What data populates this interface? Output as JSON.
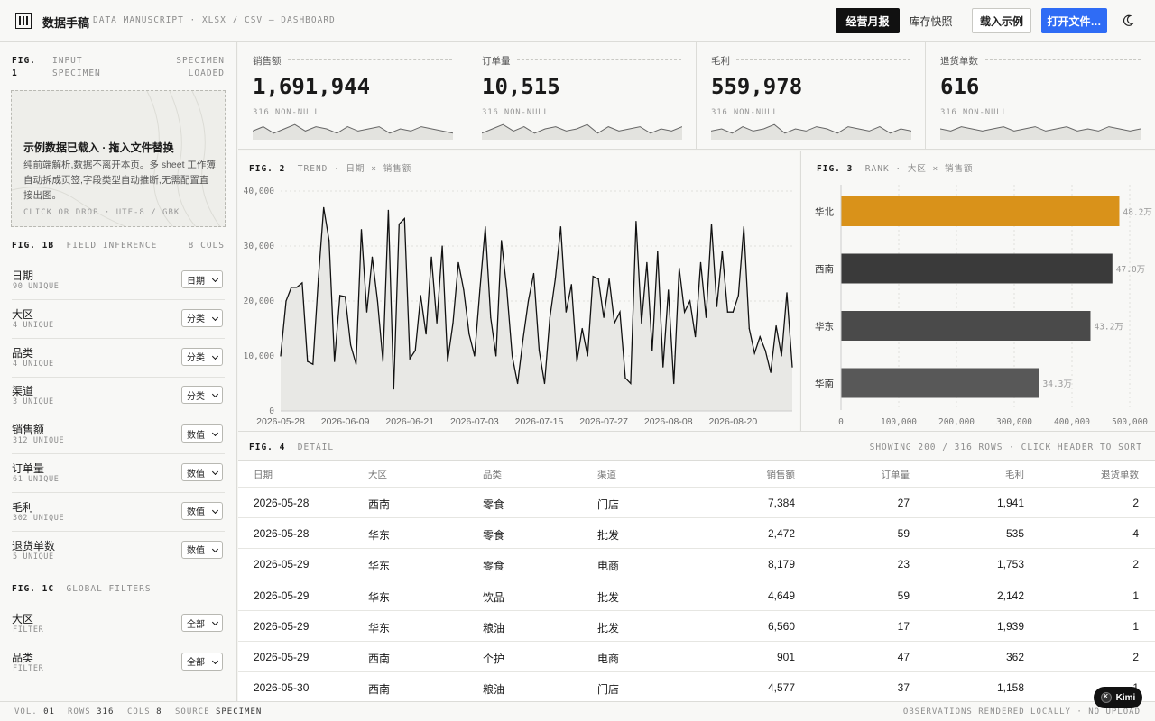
{
  "header": {
    "title": "数据手稿",
    "subtitle": "DATA MANUSCRIPT · XLSX / CSV — DASHBOARD",
    "btn_monthly": "经营月报",
    "btn_snapshot": "库存快照",
    "btn_load": "载入示例",
    "btn_open": "打开文件…"
  },
  "sidebar": {
    "fig1_a": "FIG.",
    "fig1_b": "1",
    "fig1_c": "INPUT",
    "fig1_d": "SPECIMEN",
    "fig1_e": "SPECIMEN",
    "fig1_f": "LOADED",
    "drop_title": "示例数据已载入 · 拖入文件替换",
    "drop_text": "纯前端解析,数据不离开本页。多 sheet 工作簿自动拆成页签,字段类型自动推断,无需配置直接出图。",
    "drop_meta": "CLICK OR DROP · UTF-8 / GBK",
    "fig1b_num": "FIG. 1B",
    "fig1b_lbl": "FIELD INFERENCE",
    "fig1b_cnt": "8 COLS",
    "fields": [
      {
        "name": "日期",
        "sub": "90 UNIQUE",
        "type": "日期"
      },
      {
        "name": "大区",
        "sub": "4 UNIQUE",
        "type": "分类"
      },
      {
        "name": "品类",
        "sub": "4 UNIQUE",
        "type": "分类"
      },
      {
        "name": "渠道",
        "sub": "3 UNIQUE",
        "type": "分类"
      },
      {
        "name": "销售额",
        "sub": "312 UNIQUE",
        "type": "数值"
      },
      {
        "name": "订单量",
        "sub": "61 UNIQUE",
        "type": "数值"
      },
      {
        "name": "毛利",
        "sub": "302 UNIQUE",
        "type": "数值"
      },
      {
        "name": "退货单数",
        "sub": "5 UNIQUE",
        "type": "数值"
      }
    ],
    "fig1c_num": "FIG. 1C",
    "fig1c_lbl": "GLOBAL FILTERS",
    "filters": [
      {
        "name": "大区",
        "sub": "FILTER",
        "value": "全部"
      },
      {
        "name": "品类",
        "sub": "FILTER",
        "value": "全部"
      }
    ]
  },
  "kpis": [
    {
      "label": "销售额",
      "value": "1,691,944",
      "note": "316 NON-NULL"
    },
    {
      "label": "订单量",
      "value": "10,515",
      "note": "316 NON-NULL"
    },
    {
      "label": "毛利",
      "value": "559,978",
      "note": "316 NON-NULL"
    },
    {
      "label": "退货单数",
      "value": "616",
      "note": "316 NON-NULL"
    }
  ],
  "trend": {
    "fig_num": "FIG. 2",
    "fig_lbl": "TREND · 日期 × 销售额"
  },
  "rank": {
    "fig_num": "FIG. 3",
    "fig_lbl": "RANK · 大区 × 销售额"
  },
  "chart_data": [
    {
      "type": "line",
      "xlabel": "",
      "ylabel": "",
      "ylim": [
        0,
        40000
      ],
      "yticks": [
        "0",
        "10,000",
        "20,000",
        "30,000",
        "40,000"
      ],
      "xticks": [
        "2026-05-28",
        "2026-06-09",
        "2026-06-21",
        "2026-07-03",
        "2026-07-15",
        "2026-07-27",
        "2026-08-08",
        "2026-08-20"
      ],
      "x_start": "2026-05-28",
      "x_end": "2026-08-26",
      "values": [
        10000,
        20000,
        22500,
        22500,
        23300,
        9000,
        8500,
        24000,
        37000,
        31000,
        9000,
        21000,
        20800,
        12000,
        8500,
        33000,
        18000,
        28000,
        20000,
        9000,
        36500,
        4000,
        34000,
        35000,
        9500,
        11000,
        21000,
        14000,
        28000,
        16000,
        30000,
        9000,
        16000,
        27000,
        22000,
        14000,
        10000,
        22000,
        33500,
        17000,
        10000,
        31000,
        22000,
        10000,
        5000,
        13000,
        20000,
        25000,
        11000,
        5000,
        17000,
        24000,
        33500,
        18000,
        23000,
        9000,
        15000,
        10000,
        24500,
        24000,
        17000,
        24000,
        16000,
        18000,
        6000,
        5000,
        34500,
        16000,
        27000,
        11000,
        29000,
        8000,
        22000,
        5000,
        26000,
        18000,
        20000,
        13500,
        27000,
        17000,
        34000,
        19000,
        29000,
        18000,
        18000,
        21000,
        33500,
        15000,
        10500,
        13500,
        11000,
        7000,
        15500,
        10000,
        21500,
        8000
      ],
      "grid": true
    },
    {
      "type": "bar",
      "orientation": "horizontal",
      "categories": [
        "华北",
        "西南",
        "华东",
        "华南"
      ],
      "values": [
        482000,
        470000,
        432000,
        343000
      ],
      "data_labels": [
        "48.2万",
        "47.0万",
        "43.2万",
        "34.3万"
      ],
      "xticks": [
        "0",
        "100,000",
        "200,000",
        "300,000",
        "400,000",
        "500,000"
      ],
      "xlim": [
        0,
        500000
      ],
      "colors": [
        "#d9921a",
        "#3a3a3a",
        "#4a4a4a",
        "#585858"
      ]
    }
  ],
  "table": {
    "fig_num": "FIG. 4",
    "fig_lbl": "DETAIL",
    "info": "SHOWING 200 / 316 ROWS · CLICK HEADER TO SORT",
    "headers": [
      "日期",
      "大区",
      "品类",
      "渠道",
      "销售额",
      "订单量",
      "毛利",
      "退货单数"
    ],
    "rows": [
      [
        "2026-05-28",
        "西南",
        "零食",
        "门店",
        "7,384",
        "27",
        "1,941",
        "2"
      ],
      [
        "2026-05-28",
        "华东",
        "零食",
        "批发",
        "2,472",
        "59",
        "535",
        "4"
      ],
      [
        "2026-05-29",
        "华东",
        "零食",
        "电商",
        "8,179",
        "23",
        "1,753",
        "2"
      ],
      [
        "2026-05-29",
        "华东",
        "饮品",
        "批发",
        "4,649",
        "59",
        "2,142",
        "1"
      ],
      [
        "2026-05-29",
        "华东",
        "粮油",
        "批发",
        "6,560",
        "17",
        "1,939",
        "1"
      ],
      [
        "2026-05-29",
        "西南",
        "个护",
        "电商",
        "901",
        "47",
        "362",
        "2"
      ],
      [
        "2026-05-30",
        "西南",
        "粮油",
        "门店",
        "4,577",
        "37",
        "1,158",
        "1"
      ]
    ]
  },
  "footer": {
    "vol_l": "VOL.",
    "vol_v": "01",
    "rows_l": "ROWS",
    "rows_v": "316",
    "cols_l": "COLS",
    "cols_v": "8",
    "src_l": "SOURCE",
    "src_v": "SPECIMEN",
    "right": "OBSERVATIONS RENDERED LOCALLY · NO UPLOAD"
  },
  "kimi": "Kimi"
}
